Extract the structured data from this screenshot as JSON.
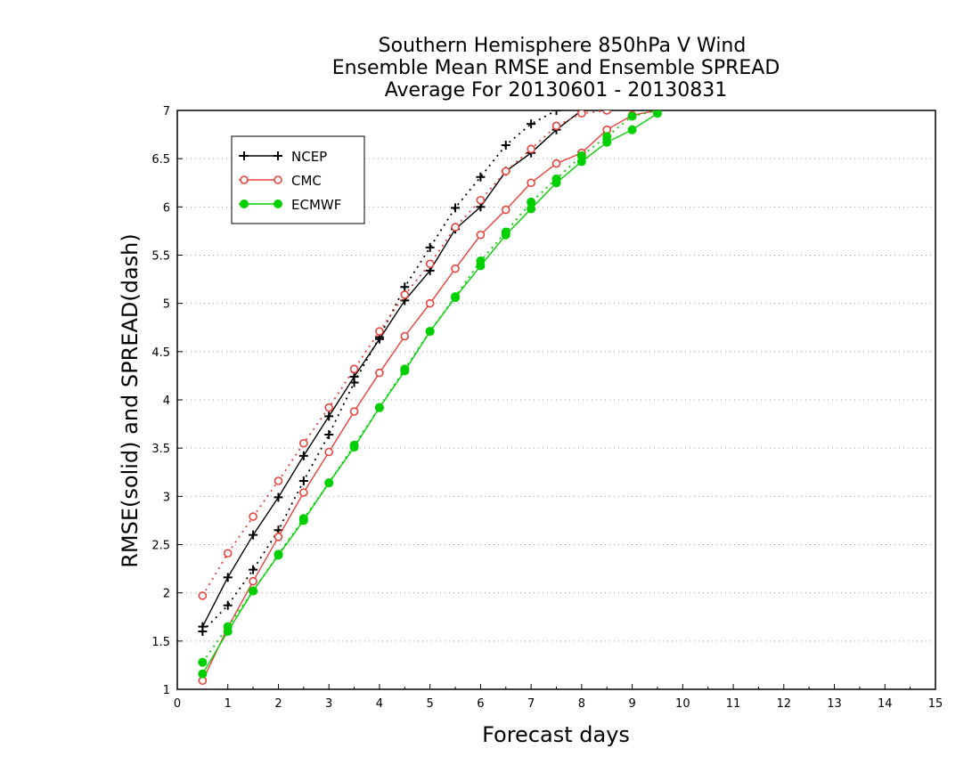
{
  "chart_data": {
    "type": "line",
    "title_lines": [
      "Southern Hemisphere 850hPa V Wind",
      "Ensemble Mean RMSE and Ensemble SPREAD",
      "Average For 20130601 - 20130831"
    ],
    "xlabel": "Forecast days",
    "ylabel": "RMSE(solid) and SPREAD(dash)",
    "xlim": [
      0,
      15
    ],
    "ylim": [
      1,
      7
    ],
    "xticks": [
      "0",
      "1",
      "2",
      "3",
      "4",
      "5",
      "6",
      "7",
      "8",
      "9",
      "10",
      "11",
      "12",
      "13",
      "14",
      "15"
    ],
    "yticks": [
      "1",
      "1.5",
      "2",
      "2.5",
      "3",
      "3.5",
      "4",
      "4.5",
      "5",
      "5.5",
      "6",
      "6.5",
      "7"
    ],
    "grid": "dotted",
    "legend_position": "top-left",
    "x": [
      0.5,
      1,
      1.5,
      2,
      2.5,
      3,
      3.5,
      4,
      4.5,
      5,
      5.5,
      6,
      6.5,
      7,
      7.5,
      8,
      8.5,
      9,
      9.5,
      10
    ],
    "series": [
      {
        "name": "NCEP",
        "color": "#000000",
        "marker": "plus",
        "rmse": [
          1.65,
          2.16,
          2.6,
          2.99,
          3.42,
          3.83,
          4.24,
          4.63,
          5.03,
          5.34,
          5.77,
          6.0,
          6.37,
          6.56,
          6.8,
          7.0,
          null,
          null,
          null,
          null
        ],
        "spread": [
          1.6,
          1.87,
          2.24,
          2.65,
          3.16,
          3.64,
          4.18,
          4.65,
          5.17,
          5.58,
          5.99,
          6.31,
          6.64,
          6.86,
          7.0,
          null,
          null,
          null,
          null,
          null
        ]
      },
      {
        "name": "CMC",
        "color": "#e8413c",
        "marker": "circle-open",
        "rmse": [
          1.09,
          1.64,
          2.12,
          2.58,
          3.04,
          3.46,
          3.88,
          4.28,
          4.66,
          5.0,
          5.36,
          5.71,
          5.97,
          6.25,
          6.45,
          6.56,
          6.8,
          6.95,
          7.0,
          null
        ],
        "spread": [
          1.97,
          2.41,
          2.79,
          3.16,
          3.55,
          3.92,
          4.32,
          4.71,
          5.09,
          5.41,
          5.79,
          6.07,
          6.37,
          6.6,
          6.84,
          6.97,
          7.0,
          null,
          null,
          null
        ]
      },
      {
        "name": "ECMWF",
        "color": "#00d000",
        "marker": "circle-filled",
        "rmse": [
          1.16,
          1.6,
          2.02,
          2.39,
          2.75,
          3.14,
          3.51,
          3.92,
          4.3,
          4.71,
          5.06,
          5.39,
          5.71,
          5.98,
          6.25,
          6.47,
          6.67,
          6.8,
          6.97,
          null
        ],
        "spread": [
          1.28,
          1.65,
          2.02,
          2.4,
          2.77,
          3.14,
          3.53,
          3.92,
          4.32,
          4.71,
          5.07,
          5.44,
          5.74,
          6.05,
          6.29,
          6.53,
          6.73,
          6.94,
          7.0,
          null
        ]
      }
    ]
  }
}
